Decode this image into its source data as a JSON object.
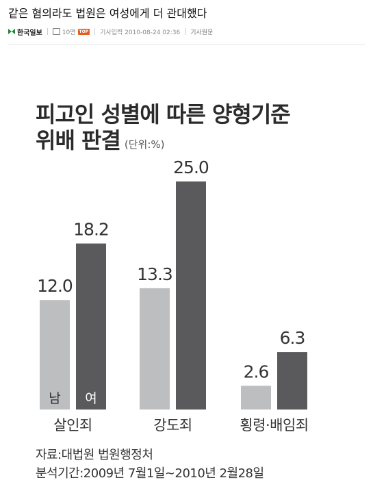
{
  "article": {
    "headline": "같은 혐의라도 법원은 여성에게 더 관대했다",
    "meta": {
      "source": "한국일보",
      "count_label": "10면",
      "badge": "TOP",
      "date_label": "기사입력 2010-08-24 02:36",
      "original_link": "기사원문"
    }
  },
  "chart_data": {
    "type": "bar",
    "title": "피고인 성별에 따른 양형기준 위배 판결",
    "title_lines": [
      "피고인 성별에 따른 양형기준",
      "위배 판결"
    ],
    "unit": "(단위:%)",
    "categories": [
      "살인죄",
      "강도죄",
      "횡령·배임죄"
    ],
    "series": [
      {
        "name": "남",
        "values": [
          12.0,
          13.3,
          2.6
        ],
        "color": "#bdbec0"
      },
      {
        "name": "여",
        "values": [
          18.2,
          25.0,
          6.3
        ],
        "color": "#5a5a5c"
      }
    ],
    "value_labels": [
      [
        "12.0",
        "13.3",
        "2.6"
      ],
      [
        "18.2",
        "25.0",
        "6.3"
      ]
    ],
    "ylim": [
      0,
      25
    ],
    "grid": false,
    "legend_placement": "inside-first-bars",
    "source_note": "자료:대법원 법원행정처",
    "period_note": "분석기간:2009년 7월1일~2010년 2월28일"
  }
}
